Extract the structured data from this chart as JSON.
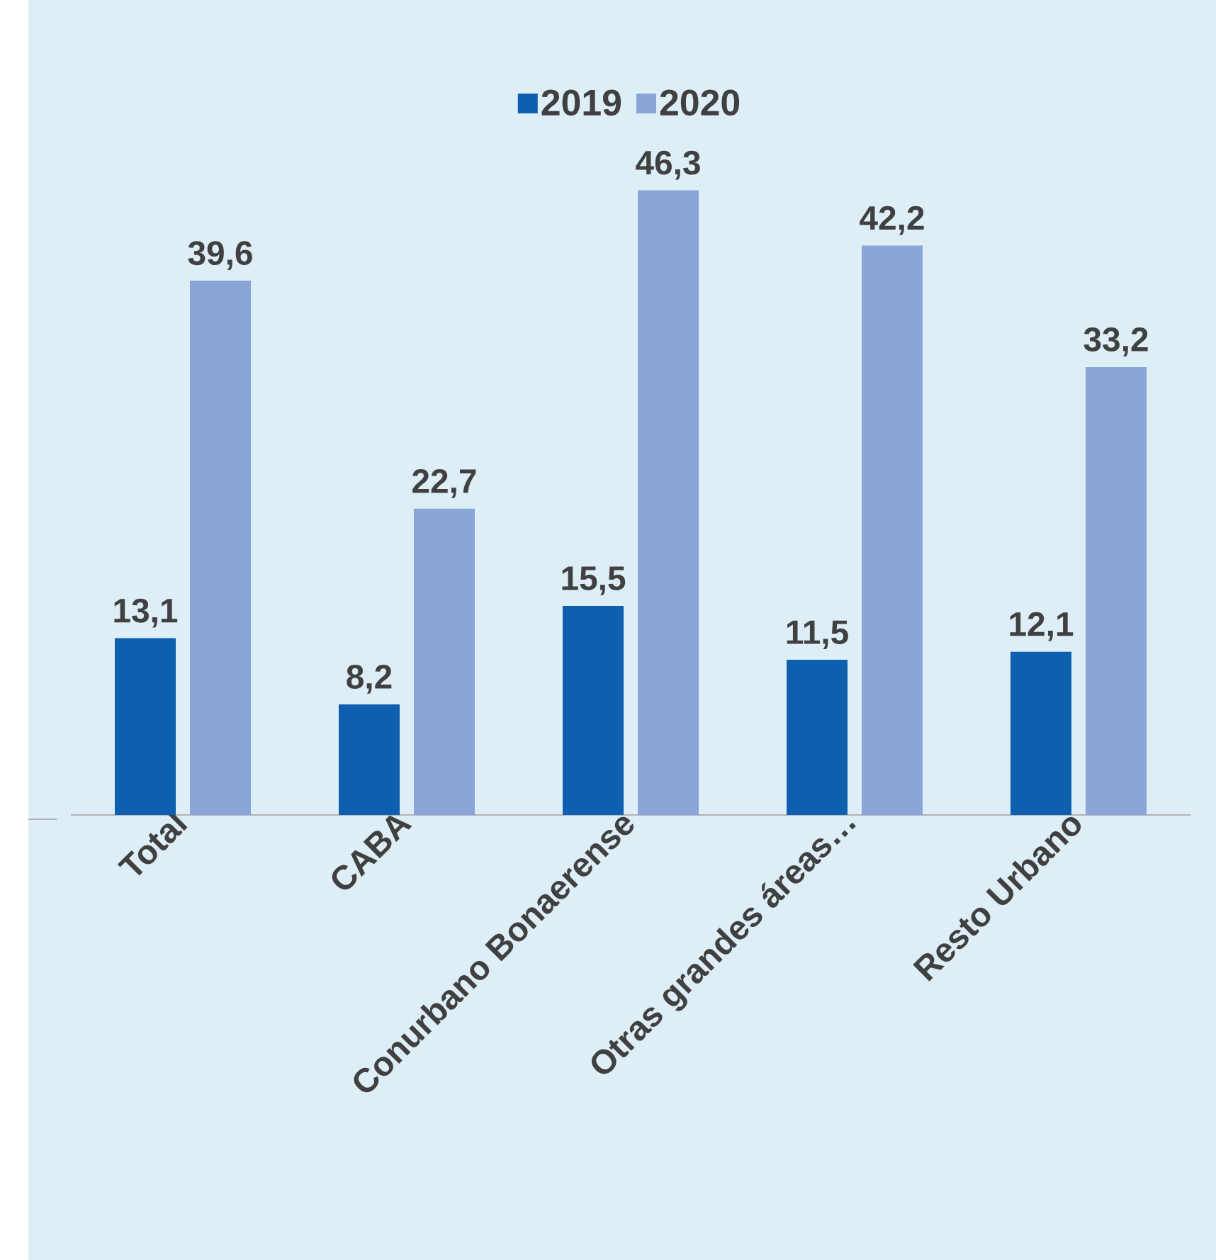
{
  "chart_data": {
    "type": "bar",
    "categories": [
      "Total",
      "CABA",
      "Conurbano Bonaerense",
      "Otras grandes áreas…",
      "Resto Urbano"
    ],
    "series": [
      {
        "name": "2019",
        "color": "#0e5fad",
        "values": [
          13.1,
          8.2,
          15.5,
          11.5,
          12.1
        ],
        "value_labels": [
          "13,1",
          "8,2",
          "15,5",
          "11,5",
          "12,1"
        ]
      },
      {
        "name": "2020",
        "color": "#8aa6d8",
        "values": [
          39.6,
          22.7,
          46.3,
          42.2,
          33.2
        ],
        "value_labels": [
          "39,6",
          "22,7",
          "46,3",
          "42,2",
          "33,2"
        ]
      }
    ],
    "legend": "top"
  }
}
